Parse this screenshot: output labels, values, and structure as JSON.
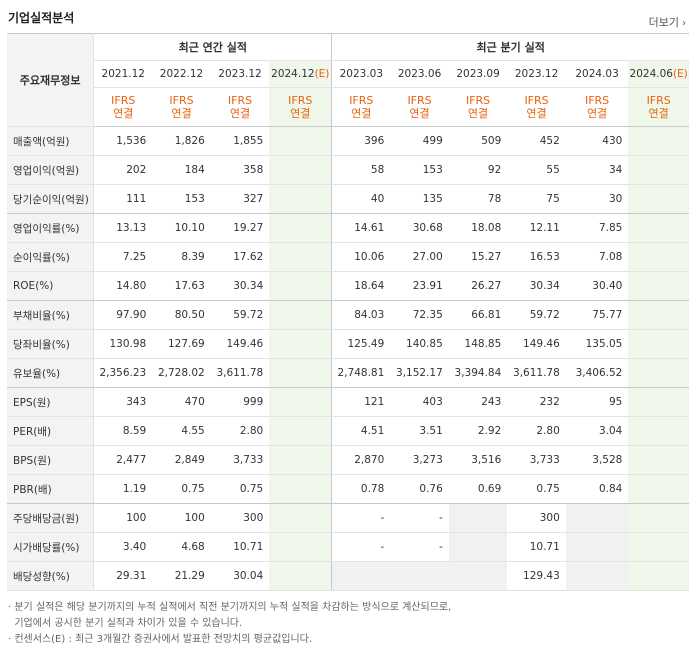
{
  "header": {
    "title": "기업실적분석",
    "more_label": "더보기",
    "more_icon": "chevron-right-icon"
  },
  "table": {
    "row_label_header": "주요재무정보",
    "group_annual": "최근 연간 실적",
    "group_quarter": "최근 분기 실적",
    "annual_periods": [
      {
        "label": "2021.12",
        "est": ""
      },
      {
        "label": "2022.12",
        "est": ""
      },
      {
        "label": "2023.12",
        "est": ""
      },
      {
        "label": "2024.12",
        "est": "(E)"
      }
    ],
    "quarter_periods": [
      {
        "label": "2023.03",
        "est": ""
      },
      {
        "label": "2023.06",
        "est": ""
      },
      {
        "label": "2023.09",
        "est": ""
      },
      {
        "label": "2023.12",
        "est": ""
      },
      {
        "label": "2024.03",
        "est": ""
      },
      {
        "label": "2024.06",
        "est": "(E)"
      }
    ],
    "basis_top": "IFRS",
    "basis_bottom": "연결",
    "rows": [
      {
        "label": "매출액(억원)",
        "values": [
          "1,536",
          "1,826",
          "1,855",
          "",
          "396",
          "499",
          "509",
          "452",
          "430",
          ""
        ]
      },
      {
        "label": "영업이익(억원)",
        "values": [
          "202",
          "184",
          "358",
          "",
          "58",
          "153",
          "92",
          "55",
          "34",
          ""
        ]
      },
      {
        "label": "당기순이익(억원)",
        "values": [
          "111",
          "153",
          "327",
          "",
          "40",
          "135",
          "78",
          "75",
          "30",
          ""
        ]
      },
      {
        "label": "영업이익률(%)",
        "values": [
          "13.13",
          "10.10",
          "19.27",
          "",
          "14.61",
          "30.68",
          "18.08",
          "12.11",
          "7.85",
          ""
        ]
      },
      {
        "label": "순이익률(%)",
        "values": [
          "7.25",
          "8.39",
          "17.62",
          "",
          "10.06",
          "27.00",
          "15.27",
          "16.53",
          "7.08",
          ""
        ]
      },
      {
        "label": "ROE(%)",
        "values": [
          "14.80",
          "17.63",
          "30.34",
          "",
          "18.64",
          "23.91",
          "26.27",
          "30.34",
          "30.40",
          ""
        ]
      },
      {
        "label": "부채비율(%)",
        "values": [
          "97.90",
          "80.50",
          "59.72",
          "",
          "84.03",
          "72.35",
          "66.81",
          "59.72",
          "75.77",
          ""
        ]
      },
      {
        "label": "당좌비율(%)",
        "values": [
          "130.98",
          "127.69",
          "149.46",
          "",
          "125.49",
          "140.85",
          "148.85",
          "149.46",
          "135.05",
          ""
        ]
      },
      {
        "label": "유보율(%)",
        "values": [
          "2,356.23",
          "2,728.02",
          "3,611.78",
          "",
          "2,748.81",
          "3,152.17",
          "3,394.84",
          "3,611.78",
          "3,406.52",
          ""
        ]
      },
      {
        "label": "EPS(원)",
        "values": [
          "343",
          "470",
          "999",
          "",
          "121",
          "403",
          "243",
          "232",
          "95",
          ""
        ]
      },
      {
        "label": "PER(배)",
        "values": [
          "8.59",
          "4.55",
          "2.80",
          "",
          "4.51",
          "3.51",
          "2.92",
          "2.80",
          "3.04",
          ""
        ]
      },
      {
        "label": "BPS(원)",
        "values": [
          "2,477",
          "2,849",
          "3,733",
          "",
          "2,870",
          "3,273",
          "3,516",
          "3,733",
          "3,528",
          ""
        ]
      },
      {
        "label": "PBR(배)",
        "values": [
          "1.19",
          "0.75",
          "0.75",
          "",
          "0.78",
          "0.76",
          "0.69",
          "0.75",
          "0.84",
          ""
        ]
      },
      {
        "label": "주당배당금(원)",
        "values": [
          "100",
          "100",
          "300",
          "",
          "-",
          "-",
          "",
          "300",
          "",
          ""
        ]
      },
      {
        "label": "시가배당률(%)",
        "values": [
          "3.40",
          "4.68",
          "10.71",
          "",
          "-",
          "-",
          "",
          "10.71",
          "",
          ""
        ]
      },
      {
        "label": "배당성향(%)",
        "values": [
          "29.31",
          "21.29",
          "30.04",
          "",
          "",
          "",
          "",
          "129.43",
          "",
          ""
        ]
      }
    ]
  },
  "notes": [
    "분기 실적은 해당 분기까지의 누적 실적에서 직전 분기까지의 누적 실적을 차감하는 방식으로 계산되므로,",
    "기업에서 공시한 분기 실적과 차이가 있을 수 있습니다.",
    "컨센서스(E) : 최근 3개월간 증권사에서 발표한 전망치의 평균값입니다."
  ]
}
